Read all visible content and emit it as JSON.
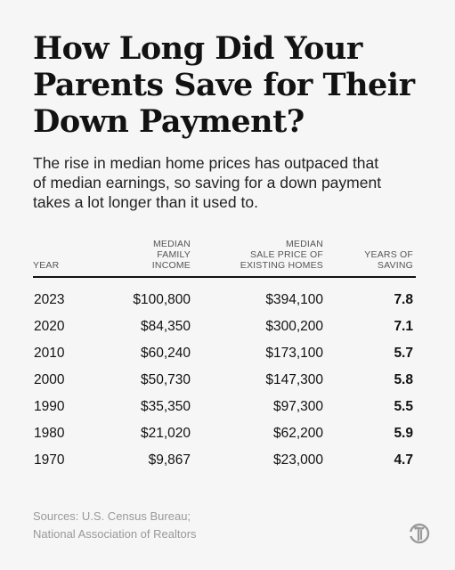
{
  "title_lines": [
    "How Long Did Your",
    "Parents Save for Their",
    "Down Payment?"
  ],
  "subtitle_lines": [
    "The rise in median home prices has outpaced that",
    "of median earnings, so saving for a down payment",
    "takes a lot longer than it used to."
  ],
  "headers": [
    {
      "lines": [
        "YEAR"
      ]
    },
    {
      "lines": [
        "MEDIAN",
        "FAMILY",
        "INCOME"
      ]
    },
    {
      "lines": [
        "MEDIAN",
        "SALE PRICE OF",
        "EXISTING HOMES"
      ]
    },
    {
      "lines": [
        "YEARS OF",
        "SAVING"
      ]
    }
  ],
  "rows": [
    {
      "year": "2023",
      "income": "$100,800",
      "price": "$394,100",
      "years": "7.8"
    },
    {
      "year": "2020",
      "income": "$84,350",
      "price": "$300,200",
      "years": "7.1"
    },
    {
      "year": "2010",
      "income": "$60,240",
      "price": "$173,100",
      "years": "5.7"
    },
    {
      "year": "2000",
      "income": "$50,730",
      "price": "$147,300",
      "years": "5.8"
    },
    {
      "year": "1990",
      "income": "$35,350",
      "price": "$97,300",
      "years": "5.5"
    },
    {
      "year": "1980",
      "income": "$21,020",
      "price": "$62,200",
      "years": "5.9"
    },
    {
      "year": "1970",
      "income": "$9,867",
      "price": "$23,000",
      "years": "4.7"
    }
  ],
  "sources_lines": [
    "Sources: U.S. Census Bureau;",
    "National Association of Realtors"
  ],
  "logo_icon": "nyt-logo-icon",
  "colors": {
    "background": "#f6f6f6",
    "text": "#121212",
    "muted": "#999999",
    "header": "#555555"
  },
  "chart_data": {
    "type": "table",
    "title": "How Long Did Your Parents Save for Their Down Payment?",
    "subtitle": "The rise in median home prices has outpaced that of median earnings, so saving for a down payment takes a lot longer than it used to.",
    "columns": [
      "YEAR",
      "MEDIAN FAMILY INCOME",
      "MEDIAN SALE PRICE OF EXISTING HOMES",
      "YEARS OF SAVING"
    ],
    "rows": [
      [
        2023,
        100800,
        394100,
        7.8
      ],
      [
        2020,
        84350,
        300200,
        7.1
      ],
      [
        2010,
        60240,
        173100,
        5.7
      ],
      [
        2000,
        50730,
        147300,
        5.8
      ],
      [
        1990,
        35350,
        97300,
        5.5
      ],
      [
        1980,
        21020,
        62200,
        5.9
      ],
      [
        1970,
        9867,
        23000,
        4.7
      ]
    ]
  }
}
